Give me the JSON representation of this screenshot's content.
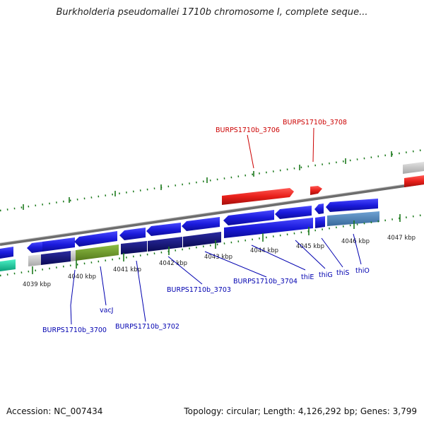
{
  "header": {
    "title": "Burkholderia pseudomallei 1710b chromosome I, complete seque..."
  },
  "footer": {
    "accession": "Accession: NC_007434",
    "topology": "Topology: circular; Length: 4,126,292 bp; Genes: 3,799"
  },
  "ticks": [
    "4039 kbp",
    "4040 kbp",
    "4041 kbp",
    "4042 kbp",
    "4043 kbp",
    "4044 kbp",
    "4045 kbp",
    "4046 kbp",
    "4047 kbp"
  ],
  "gene_labels": [
    "BURPS1710b_3706",
    "BURPS1710b_3708",
    "BURPS1710b_3700",
    "vacJ",
    "BURPS1710b_3702",
    "BURPS1710b_3703",
    "BURPS1710b_3704",
    "thiE",
    "thiG",
    "thiS",
    "thiO"
  ],
  "colors": {
    "forward_gene": "#e8201b",
    "reverse_gene": "#1b1bdc",
    "dark_feature": "#10107a",
    "olive_feature": "#6e9a2a",
    "steel_feature": "#4a7fb3",
    "gray_feature": "#c8c8c8",
    "teal_feature": "#14d6a6",
    "backbone": "#777777",
    "tick_green": "#1c7a1c",
    "label_red": "#cc0000",
    "label_blue": "#0000b0"
  }
}
